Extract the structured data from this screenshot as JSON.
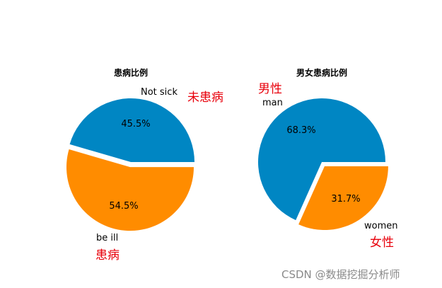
{
  "chart_data": [
    {
      "type": "pie",
      "title": "患病比例",
      "categories": [
        "Not sick",
        "be ill"
      ],
      "values": [
        45.5,
        54.5
      ],
      "percent_labels": [
        "45.5%",
        "54.5%"
      ],
      "colors": [
        "#0086c3",
        "#ff8c00"
      ],
      "explode": [
        0,
        0.08
      ],
      "annotations": [
        "未患病",
        "患病"
      ]
    },
    {
      "type": "pie",
      "title": "男女患病比例",
      "categories": [
        "man",
        "women"
      ],
      "values": [
        68.3,
        31.7
      ],
      "percent_labels": [
        "68.3%",
        "31.7%"
      ],
      "colors": [
        "#0086c3",
        "#ff8c00"
      ],
      "explode": [
        0,
        0.08
      ],
      "annotations": [
        "男性",
        "女性"
      ]
    }
  ],
  "annotation_color": "#e8000b",
  "watermark": "CSDN @数据挖掘分析师"
}
